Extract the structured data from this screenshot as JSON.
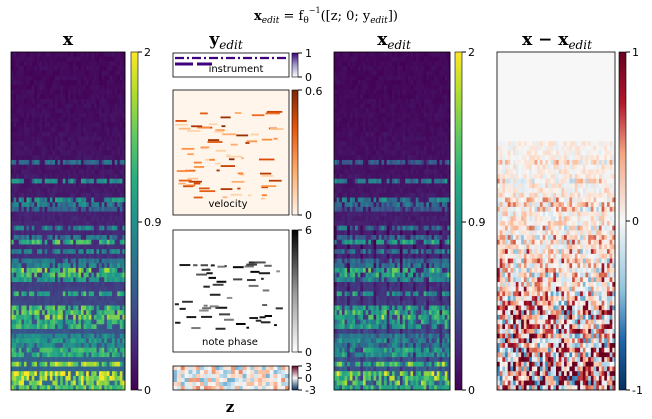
{
  "figure": {
    "main_title": "x_edit = f_θ^{-1}([z; 0; y_edit])",
    "main_title_parts": {
      "lhs": "x",
      "lhs_sub": "edit",
      "eq": " = f",
      "f_sub": "θ",
      "f_sup": "−1",
      "arg": "([z; 0; y",
      "arg_sub": "edit",
      "close": "])"
    }
  },
  "panels": {
    "x": {
      "title": "x",
      "cbar_ticks": [
        "2",
        "0.9",
        "0"
      ]
    },
    "y_edit": {
      "title": "y",
      "title_sub": "edit"
    },
    "x_edit": {
      "title": "x",
      "title_sub": "edit",
      "cbar_ticks": [
        "2",
        "0.9",
        "0"
      ]
    },
    "diff": {
      "title": "x − x",
      "title_sub": "edit",
      "cbar_ticks": [
        "1",
        "0",
        "-1"
      ]
    },
    "instrument": {
      "label": "instrument",
      "cbar_ticks": [
        "1",
        "0"
      ]
    },
    "velocity": {
      "label": "velocity",
      "cbar_ticks": [
        "0.6",
        "0"
      ]
    },
    "note_phase": {
      "label": "note phase",
      "cbar_ticks": [
        "6",
        "0"
      ]
    },
    "z": {
      "label": "z",
      "cbar_ticks": [
        "3",
        "0",
        "-3"
      ]
    }
  },
  "colors": {
    "viridis": [
      "#440154",
      "#472878",
      "#3b528b",
      "#2c728e",
      "#21918c",
      "#28ae80",
      "#5ec962",
      "#addc30",
      "#fde725"
    ],
    "diverging": [
      "#053061",
      "#2166ac",
      "#4393c3",
      "#92c5de",
      "#d1e5f0",
      "#f7f7f7",
      "#fddbc7",
      "#f4a582",
      "#d6604d",
      "#b2182b",
      "#67001f"
    ],
    "oranges": [
      "#fff5eb",
      "#fdd0a2",
      "#fd8d3c",
      "#d94801",
      "#7f2704"
    ],
    "greys": [
      "#ffffff",
      "#bdbdbd",
      "#737373",
      "#252525",
      "#000000"
    ],
    "instrument_line": "#3f007d"
  },
  "chart_data": [
    {
      "type": "heatmap",
      "name": "x",
      "colormap": "viridis",
      "vmin": 0,
      "vmax": 2,
      "cbar_ticks": [
        2,
        0.9,
        0
      ]
    },
    {
      "type": "heatmap",
      "name": "instrument",
      "colormap": "purples",
      "vmin": 0,
      "vmax": 1,
      "cbar_ticks": [
        1,
        0
      ]
    },
    {
      "type": "heatmap",
      "name": "velocity",
      "colormap": "oranges",
      "vmin": 0,
      "vmax": 0.6,
      "cbar_ticks": [
        0.6,
        0
      ]
    },
    {
      "type": "heatmap",
      "name": "note phase",
      "colormap": "greys",
      "vmin": 0,
      "vmax": 6,
      "cbar_ticks": [
        6,
        0
      ]
    },
    {
      "type": "heatmap",
      "name": "z",
      "colormap": "RdBu",
      "vmin": -3,
      "vmax": 3,
      "cbar_ticks": [
        3,
        0,
        -3
      ]
    },
    {
      "type": "heatmap",
      "name": "x_edit",
      "colormap": "viridis",
      "vmin": 0,
      "vmax": 2,
      "cbar_ticks": [
        2,
        0.9,
        0
      ]
    },
    {
      "type": "heatmap",
      "name": "x - x_edit",
      "colormap": "RdBu_r",
      "vmin": -1,
      "vmax": 1,
      "cbar_ticks": [
        1,
        0,
        -1
      ]
    }
  ]
}
